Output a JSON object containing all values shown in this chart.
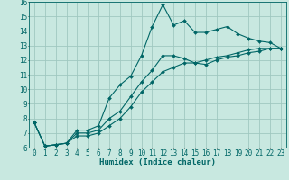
{
  "xlabel": "Humidex (Indice chaleur)",
  "xlim": [
    -0.5,
    23.5
  ],
  "ylim": [
    6,
    16
  ],
  "xticks": [
    0,
    1,
    2,
    3,
    4,
    5,
    6,
    7,
    8,
    9,
    10,
    11,
    12,
    13,
    14,
    15,
    16,
    17,
    18,
    19,
    20,
    21,
    22,
    23
  ],
  "yticks": [
    6,
    7,
    8,
    9,
    10,
    11,
    12,
    13,
    14,
    15,
    16
  ],
  "bg_color": "#c8e8e0",
  "grid_color": "#a0c8c0",
  "line_color": "#006666",
  "line1_y": [
    7.7,
    6.1,
    6.2,
    6.3,
    7.2,
    7.2,
    7.5,
    9.4,
    10.3,
    10.9,
    12.3,
    14.3,
    15.8,
    14.4,
    14.7,
    13.9,
    13.9,
    14.1,
    14.3,
    13.8,
    13.5,
    13.3,
    13.2,
    12.8
  ],
  "line2_y": [
    7.7,
    6.1,
    6.2,
    6.3,
    7.0,
    7.0,
    7.2,
    8.0,
    8.5,
    9.5,
    10.5,
    11.3,
    12.3,
    12.3,
    12.1,
    11.8,
    11.7,
    12.0,
    12.2,
    12.3,
    12.5,
    12.6,
    12.8,
    12.8
  ],
  "line3_y": [
    7.7,
    6.1,
    6.2,
    6.3,
    6.8,
    6.8,
    7.0,
    7.5,
    8.0,
    8.8,
    9.8,
    10.5,
    11.2,
    11.5,
    11.8,
    11.8,
    12.0,
    12.2,
    12.3,
    12.5,
    12.7,
    12.8,
    12.8,
    12.8
  ],
  "markersize": 2.0,
  "linewidth": 0.8,
  "tick_fontsize": 5.5,
  "xlabel_fontsize": 6.5
}
